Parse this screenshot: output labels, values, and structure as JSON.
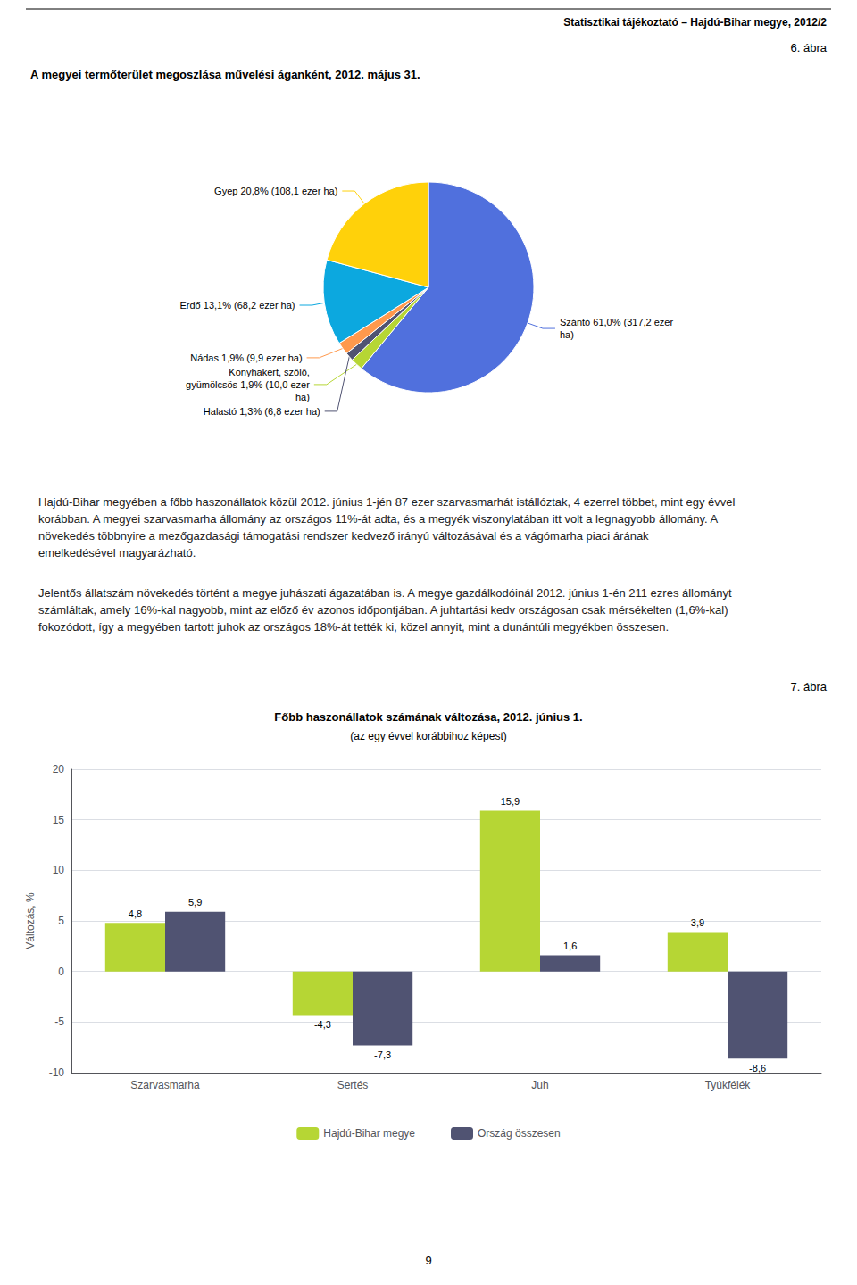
{
  "header": "Statisztikai tájékoztató – Hajdú-Bihar megye, 2012/2",
  "paragraphs": [
    "Hajdú-Bihar megyében a főbb haszonállatok közül 2012. június 1-jén 87 ezer szarvasmarhát istállóztak, 4 ezerrel többet, mint egy évvel korábban. A megyei szarvasmarha állomány az országos 11%-át adta, és a megyék viszonylatában itt volt a legnagyobb állomány. A növekedés többnyire a mezőgazdasági támogatási rendszer kedvező irányú változásával és a vágómarha piaci árának emelkedésével magyarázható.",
    "Jelentős állatszám növekedés történt a megye juhászati ágazatában is. A megye gazdálkodóinál 2012. június 1-én 211 ezres állományt számláltak, amely 16%-kal nagyobb, mint az előző év azonos időpontjában. A juhtartási kedv országosan csak mérsékelten (1,6%-kal) fokozódott, így a megyében tartott juhok az országos 18%-át tették ki, közel annyit, mint a dunántúli megyékben összesen."
  ],
  "page_number": "9",
  "chart_data": [
    {
      "type": "pie",
      "figure_number": "6. ábra",
      "title": "A megyei termőterület megoszlása művelési áganként, 2012. május 31.",
      "labels": [
        "Szántó 61,0% (317,2 ezer\nha)",
        "Konyhakert, szőlő,\ngyümölcsös 1,9% (10,0 ezer\nha)",
        "Halastó 1,3% (6,8 ezer ha)",
        "Nádas 1,9% (9,9 ezer ha)",
        "Erdő 13,1% (68,2 ezer ha)",
        "Gyep 20,8% (108,1 ezer ha)"
      ],
      "values": [
        61.0,
        1.9,
        1.3,
        1.9,
        13.1,
        20.8
      ]
    },
    {
      "type": "bar",
      "figure_number": "7. ábra",
      "title": "Főbb haszonállatok számának változása, 2012. június 1.",
      "subtitle": "(az egy évvel korábbihoz képest)",
      "ylabel": "Változás, %",
      "categories": [
        "Szarvasmarha",
        "Sertés",
        "Juh",
        "Tyúkfélék"
      ],
      "series": [
        {
          "name": "Hajdú-Bihar megye",
          "values": [
            4.8,
            -4.3,
            15.9,
            3.9
          ],
          "value_labels": [
            "4,8",
            "-4,3",
            "15,9",
            "3,9"
          ]
        },
        {
          "name": "Ország összesen",
          "values": [
            5.9,
            -7.3,
            1.6,
            -8.6
          ],
          "value_labels": [
            "5,9",
            "-7,3",
            "1,6",
            "-8,6"
          ]
        }
      ],
      "ylim": [
        -10,
        20
      ],
      "yticks": [
        -10,
        -5,
        0,
        5,
        10,
        15,
        20
      ],
      "grid": true,
      "legend": "bottom",
      "data_labels": true
    }
  ]
}
